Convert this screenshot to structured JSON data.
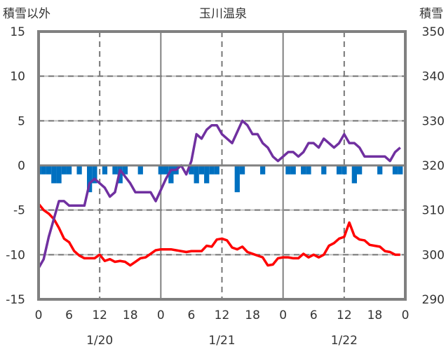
{
  "chart_data": {
    "type": "line",
    "title": "玉川温泉",
    "ylabel_left": "積雪以外",
    "ylabel_right": "積雪",
    "ylim_left": [
      -15,
      15
    ],
    "ylim_right": [
      290,
      350
    ],
    "yticks_left": [
      "15",
      "10",
      "5",
      "0",
      "-5",
      "-10",
      "-15"
    ],
    "yticks_right": [
      "350",
      "340",
      "330",
      "320",
      "310",
      "300",
      "290"
    ],
    "xticks": [
      "0",
      "6",
      "12",
      "18",
      "0",
      "6",
      "12",
      "18",
      "0",
      "6",
      "12",
      "18",
      "0"
    ],
    "date_labels": [
      "1/20",
      "1/21",
      "1/22"
    ],
    "x_hours": "0..71",
    "grid": true,
    "colors": {
      "temperature": "#ff0000",
      "snow_depth": "#7030a0",
      "bars": "#0070c0",
      "axis": "#808080"
    },
    "series": [
      {
        "name": "temperature",
        "axis": "left",
        "type": "line",
        "values": [
          -4.3,
          -5.0,
          -5.4,
          -6.0,
          -7.0,
          -8.2,
          -8.6,
          -9.6,
          -10.1,
          -10.4,
          -10.4,
          -10.4,
          -10.0,
          -10.7,
          -10.5,
          -10.8,
          -10.7,
          -10.8,
          -11.2,
          -10.8,
          -10.4,
          -10.3,
          -9.9,
          -9.5,
          -9.4,
          -9.4,
          -9.4,
          -9.5,
          -9.6,
          -9.7,
          -9.6,
          -9.6,
          -9.6,
          -9.0,
          -9.1,
          -8.3,
          -8.2,
          -8.4,
          -9.2,
          -9.4,
          -9.1,
          -9.7,
          -9.9,
          -10.1,
          -10.3,
          -11.2,
          -11.1,
          -10.4,
          -10.3,
          -10.3,
          -10.4,
          -10.4,
          -9.9,
          -10.3,
          -10.0,
          -10.3,
          -10.0,
          -9.0,
          -8.7,
          -8.2,
          -8.0,
          -6.4,
          -7.9,
          -8.3,
          -8.4,
          -8.9,
          -9.0,
          -9.1,
          -9.6,
          -9.7,
          -10.0,
          -10.0
        ]
      },
      {
        "name": "snow_depth",
        "axis": "right",
        "type": "line",
        "values": [
          297,
          299,
          304,
          308,
          312,
          312,
          311,
          311,
          311,
          311,
          316,
          317,
          316,
          315,
          313,
          314,
          319,
          317.5,
          316,
          314,
          314,
          314,
          314,
          312,
          314.5,
          317,
          319,
          319,
          320,
          318,
          321,
          327,
          326,
          328,
          329,
          329,
          327,
          326,
          325,
          327.5,
          330,
          329,
          327,
          327,
          325,
          324,
          322,
          321,
          322,
          323,
          323,
          322,
          323,
          325,
          325,
          324,
          326,
          325,
          324,
          325,
          327,
          325,
          325,
          324,
          322,
          322,
          322,
          322,
          322,
          321,
          323,
          324
        ]
      },
      {
        "name": "precip",
        "axis": "left",
        "type": "bar",
        "values": [
          -1,
          -1,
          -1,
          -2,
          -2,
          -1,
          -1,
          0,
          -1,
          0,
          -3,
          -2,
          0,
          -1,
          0,
          -1,
          -2,
          -1,
          0,
          0,
          -1,
          0,
          0,
          0,
          -1,
          -1,
          -2,
          -1,
          0,
          0,
          -1,
          -2,
          -1,
          -2,
          -1,
          -1,
          0,
          0,
          0,
          -3,
          -1,
          0,
          0,
          0,
          -1,
          0,
          0,
          0,
          0,
          -1,
          -1,
          0,
          -1,
          -1,
          0,
          0,
          -1,
          0,
          0,
          -1,
          -1,
          0,
          -2,
          -1,
          0,
          0,
          0,
          -1,
          0,
          0,
          -1,
          -1
        ]
      }
    ]
  }
}
